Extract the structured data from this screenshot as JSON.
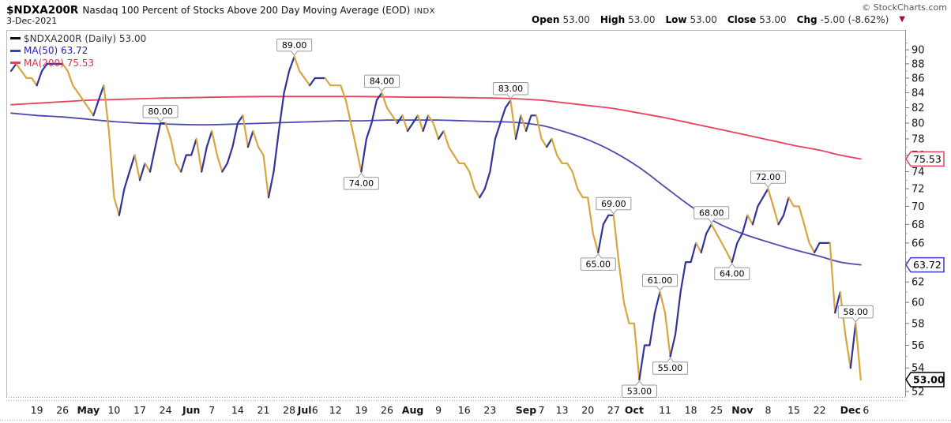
{
  "header": {
    "symbol": "$NDXA200R",
    "title": "Nasdaq 100 Percent of Stocks Above 200 Day Moving Average (EOD)",
    "exchange": "INDX",
    "credit": "© StockCharts.com",
    "date": "3-Dec-2021",
    "quote": [
      {
        "label": "Open",
        "value": "53.00"
      },
      {
        "label": "High",
        "value": "53.00"
      },
      {
        "label": "Low",
        "value": "53.00"
      },
      {
        "label": "Close",
        "value": "53.00"
      },
      {
        "label": "Chg",
        "value": "-5.00 (-8.62%)"
      }
    ],
    "change_direction": "down",
    "triangle_icon_color": "#a3112e"
  },
  "legend": [
    {
      "swatch": "#111111",
      "text_color": "#333333",
      "label": "$NDXA200R (Daily) 53.00"
    },
    {
      "swatch": "#3b3bc8",
      "text_color": "#2222bb",
      "label": "MA(50) 63.72"
    },
    {
      "swatch": "#e5415e",
      "text_color": "#e0304e",
      "label": "MA(200) 75.53"
    }
  ],
  "chart_data": {
    "type": "line",
    "title": "Nasdaq 100 Percent of Stocks Above 200 Day Moving Average (EOD)",
    "y_scale": "log",
    "ylim": [
      51.5,
      92
    ],
    "grid": false,
    "yticks": [
      90,
      88,
      86,
      84,
      82,
      80,
      78,
      76,
      74,
      72,
      70,
      68,
      66,
      64,
      62,
      60,
      58,
      56,
      54,
      52
    ],
    "xticks": [
      {
        "t": "19",
        "d": 5
      },
      {
        "t": "26",
        "d": 10
      },
      {
        "t": "May",
        "d": 15,
        "b": true
      },
      {
        "t": "10",
        "d": 20
      },
      {
        "t": "17",
        "d": 25
      },
      {
        "t": "24",
        "d": 30
      },
      {
        "t": "Jun",
        "d": 35,
        "b": true
      },
      {
        "t": "7",
        "d": 39
      },
      {
        "t": "14",
        "d": 44
      },
      {
        "t": "21",
        "d": 49
      },
      {
        "t": "28",
        "d": 54
      },
      {
        "t": "Jul",
        "d": 57,
        "b": true
      },
      {
        "t": "6",
        "d": 59
      },
      {
        "t": "12",
        "d": 63
      },
      {
        "t": "19",
        "d": 68
      },
      {
        "t": "26",
        "d": 73
      },
      {
        "t": "Aug",
        "d": 78,
        "b": true
      },
      {
        "t": "9",
        "d": 83
      },
      {
        "t": "16",
        "d": 88
      },
      {
        "t": "23",
        "d": 93
      },
      {
        "t": "Sep",
        "d": 100,
        "b": true
      },
      {
        "t": "7",
        "d": 103
      },
      {
        "t": "13",
        "d": 107
      },
      {
        "t": "20",
        "d": 112
      },
      {
        "t": "27",
        "d": 117
      },
      {
        "t": "Oct",
        "d": 121,
        "b": true
      },
      {
        "t": "11",
        "d": 127
      },
      {
        "t": "18",
        "d": 132
      },
      {
        "t": "25",
        "d": 137
      },
      {
        "t": "Nov",
        "d": 142,
        "b": true
      },
      {
        "t": "8",
        "d": 147
      },
      {
        "t": "15",
        "d": 152
      },
      {
        "t": "22",
        "d": 157
      },
      {
        "t": "Dec",
        "d": 163,
        "b": true
      },
      {
        "t": "6",
        "d": 166
      }
    ],
    "price": {
      "name": "$NDXA200R (Daily)",
      "last": 53.0,
      "up_color": "#32329b",
      "down_color": "#d8a53e",
      "values": [
        87,
        88,
        87,
        86,
        86,
        85,
        87,
        88,
        88,
        88,
        88,
        87,
        85,
        84,
        83,
        82,
        81,
        83,
        85,
        79,
        71,
        69,
        72,
        74,
        76,
        73,
        75,
        74,
        77,
        80,
        80,
        78,
        75,
        74,
        76,
        76,
        78,
        74,
        77,
        79,
        76,
        74,
        75,
        77,
        80,
        81,
        77,
        79,
        77,
        76,
        71,
        74,
        79,
        84,
        87,
        89,
        87,
        86,
        85,
        86,
        86,
        86,
        85,
        85,
        85,
        83,
        80,
        77,
        74,
        78,
        80,
        83,
        84,
        82,
        81,
        80,
        81,
        79,
        80,
        81,
        79,
        81,
        80,
        78,
        79,
        77,
        76,
        75,
        75,
        74,
        72,
        71,
        72,
        74,
        78,
        80,
        82,
        83,
        78,
        81,
        79,
        81,
        81,
        78,
        77,
        78,
        76,
        75,
        75,
        74,
        72,
        71,
        71,
        67,
        65,
        68,
        69,
        69,
        64,
        60,
        58,
        58,
        53,
        56,
        56,
        59,
        61,
        59,
        55,
        57,
        61,
        64,
        64,
        66,
        65,
        67,
        68,
        67,
        66,
        65,
        64,
        66,
        67,
        69,
        68,
        70,
        71,
        72,
        70,
        68,
        69,
        71,
        70,
        70,
        68,
        66,
        65,
        66,
        66,
        66,
        59,
        61,
        57,
        54,
        58,
        53
      ]
    },
    "ma50": {
      "name": "MA(50)",
      "last": 63.72,
      "color": "#4a4ab2",
      "days": [
        0,
        5,
        10,
        15,
        20,
        25,
        30,
        35,
        39,
        44,
        49,
        54,
        59,
        63,
        68,
        73,
        78,
        83,
        88,
        93,
        98,
        103,
        107,
        112,
        117,
        122,
        127,
        132,
        137,
        142,
        147,
        152,
        157,
        161,
        165
      ],
      "values": [
        81.3,
        81.0,
        80.8,
        80.5,
        80.2,
        80.0,
        79.9,
        79.8,
        79.8,
        79.9,
        80.0,
        80.1,
        80.2,
        80.3,
        80.3,
        80.4,
        80.4,
        80.4,
        80.3,
        80.2,
        80.1,
        79.7,
        79.0,
        77.9,
        76.4,
        74.5,
        72.2,
        70.0,
        68.2,
        67.0,
        66.1,
        65.3,
        64.6,
        64.0,
        63.72
      ]
    },
    "ma200": {
      "name": "MA(200)",
      "last": 75.53,
      "color": "#e5415e",
      "days": [
        0,
        5,
        10,
        15,
        20,
        25,
        30,
        35,
        39,
        44,
        49,
        54,
        59,
        63,
        68,
        73,
        78,
        83,
        88,
        93,
        98,
        103,
        107,
        112,
        117,
        122,
        127,
        132,
        137,
        142,
        147,
        152,
        157,
        161,
        165
      ],
      "values": [
        82.4,
        82.6,
        82.8,
        83.0,
        83.1,
        83.2,
        83.3,
        83.35,
        83.4,
        83.45,
        83.5,
        83.5,
        83.5,
        83.5,
        83.5,
        83.45,
        83.4,
        83.4,
        83.35,
        83.3,
        83.2,
        83.0,
        82.7,
        82.3,
        81.9,
        81.3,
        80.7,
        80.0,
        79.3,
        78.6,
        77.9,
        77.2,
        76.6,
        76.0,
        75.53
      ]
    },
    "annotations": [
      {
        "t": "80.00",
        "d": 29,
        "v": 80,
        "p": "above"
      },
      {
        "t": "89.00",
        "d": 55,
        "v": 89,
        "p": "above"
      },
      {
        "t": "74.00",
        "d": 68,
        "v": 74,
        "p": "below"
      },
      {
        "t": "84.00",
        "d": 72,
        "v": 84,
        "p": "above"
      },
      {
        "t": "83.00",
        "d": 97,
        "v": 83,
        "p": "above"
      },
      {
        "t": "65.00",
        "d": 114,
        "v": 65,
        "p": "below"
      },
      {
        "t": "69.00",
        "d": 117,
        "v": 69,
        "p": "above"
      },
      {
        "t": "53.00",
        "d": 122,
        "v": 53,
        "p": "below"
      },
      {
        "t": "61.00",
        "d": 126,
        "v": 61,
        "p": "above"
      },
      {
        "t": "55.00",
        "d": 128,
        "v": 55,
        "p": "below"
      },
      {
        "t": "68.00",
        "d": 136,
        "v": 68,
        "p": "above"
      },
      {
        "t": "64.00",
        "d": 140,
        "v": 64,
        "p": "below"
      },
      {
        "t": "72.00",
        "d": 147,
        "v": 72,
        "p": "above"
      },
      {
        "t": "58.00",
        "d": 164,
        "v": 58,
        "p": "above"
      }
    ],
    "right_callouts": [
      {
        "t": "75.53",
        "v": 75.53,
        "c": "#e5415e",
        "b": false
      },
      {
        "t": "63.72",
        "v": 63.72,
        "c": "#3b3bc8",
        "b": false
      },
      {
        "t": "53.00",
        "v": 53.0,
        "c": "#000000",
        "b": true
      }
    ],
    "legend_position": "top-left",
    "axis_text_color": "#141414"
  }
}
